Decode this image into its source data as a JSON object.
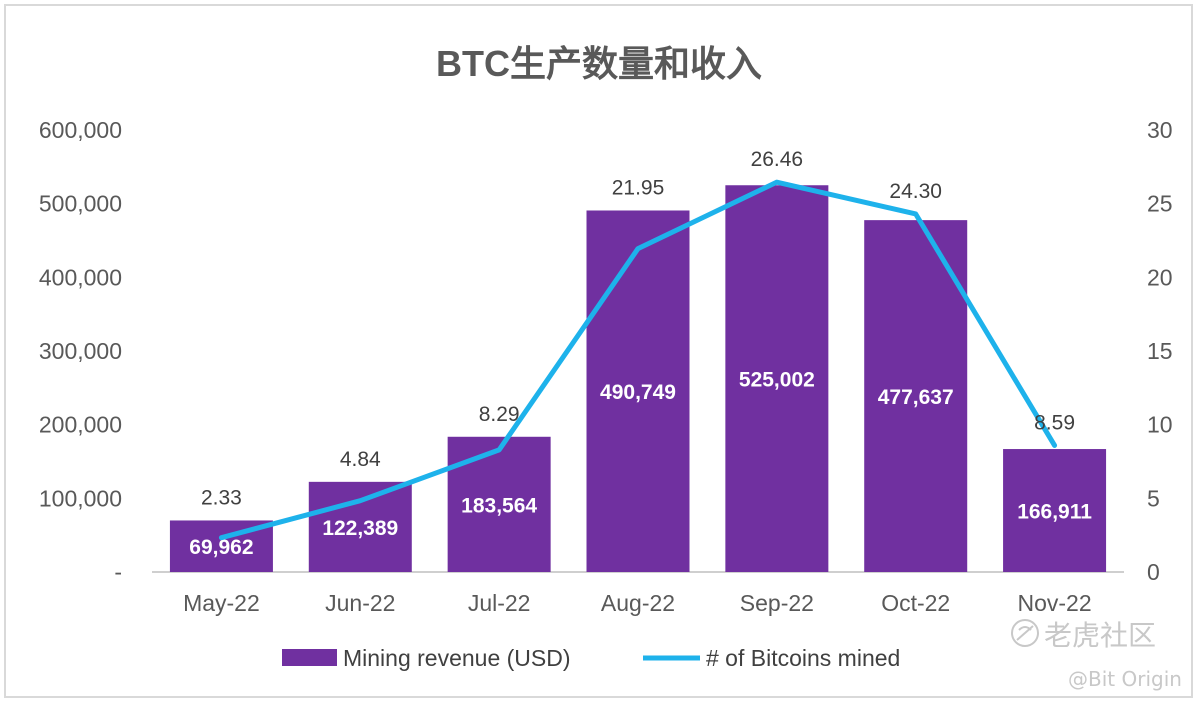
{
  "chart_data": {
    "type": "bar",
    "title": "BTC生产数量和收入",
    "categories": [
      "May-22",
      "Jun-22",
      "Jul-22",
      "Aug-22",
      "Sep-22",
      "Oct-22",
      "Nov-22"
    ],
    "series": [
      {
        "name": "Mining revenue (USD)",
        "type": "bar",
        "axis": "left",
        "values": [
          69962,
          122389,
          183564,
          490749,
          525002,
          477637,
          166911
        ],
        "labels": [
          "69,962",
          "122,389",
          "183,564",
          "490,749",
          "525,002",
          "477,637",
          "166,911"
        ]
      },
      {
        "name": "# of Bitcoins mined",
        "type": "line",
        "axis": "right",
        "values": [
          2.33,
          4.84,
          8.29,
          21.95,
          26.46,
          24.3,
          8.59
        ],
        "labels": [
          "2.33",
          "4.84",
          "8.29",
          "21.95",
          "26.46",
          "24.30",
          "8.59"
        ]
      }
    ],
    "y_left": {
      "ylim": [
        0,
        600000
      ],
      "ticks": [
        "-",
        "100,000",
        "200,000",
        "300,000",
        "400,000",
        "500,000",
        "600,000"
      ]
    },
    "y_right": {
      "ylim": [
        0,
        30
      ],
      "ticks": [
        "0",
        "5",
        "10",
        "15",
        "20",
        "25",
        "30"
      ]
    },
    "grid": false,
    "legend": "bottom",
    "colors": {
      "bar": "#7030a0",
      "line": "#1eb2eb",
      "axis": "#bfbfbf",
      "text": "#595959"
    }
  },
  "watermark": {
    "brand": "老虎社区",
    "handle": "@Bit Origin"
  }
}
